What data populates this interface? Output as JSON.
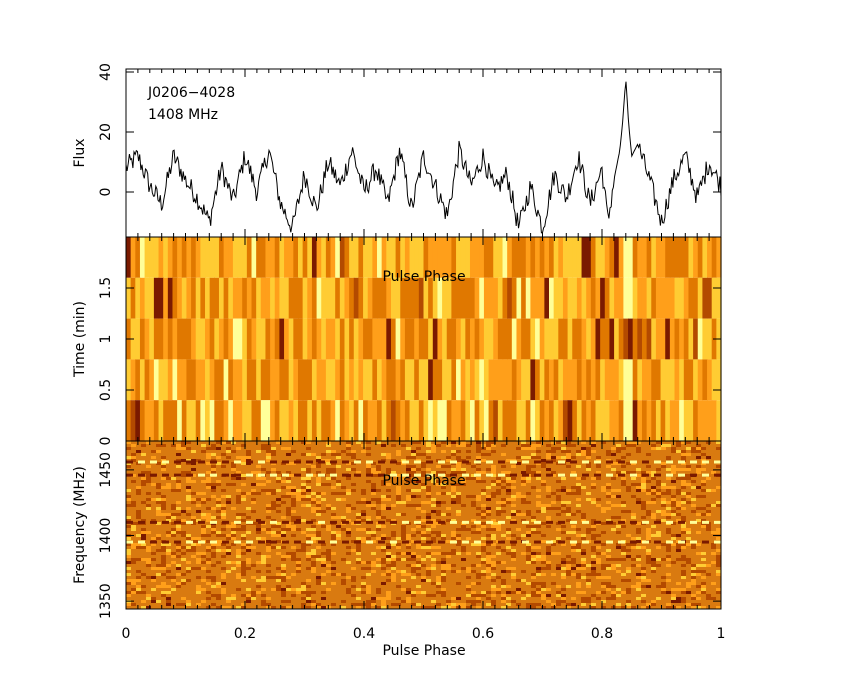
{
  "chart_data": [
    {
      "type": "line",
      "panel": "profile",
      "source": "J0206−4028",
      "frequency_label": "1408 MHz",
      "ylabel": "Flux",
      "xlabel": "",
      "xlim": [
        0,
        1
      ],
      "ylim": [
        -15,
        41
      ],
      "yticks": [
        "0",
        "20",
        "40"
      ],
      "grid": false,
      "series": [
        {
          "x": [
            0.0,
            0.02,
            0.04,
            0.06,
            0.08,
            0.1,
            0.12,
            0.14,
            0.16,
            0.18,
            0.2,
            0.22,
            0.24,
            0.26,
            0.28,
            0.3,
            0.32,
            0.34,
            0.36,
            0.38,
            0.4,
            0.42,
            0.44,
            0.46,
            0.48,
            0.5,
            0.52,
            0.54,
            0.56,
            0.58,
            0.6,
            0.62,
            0.64,
            0.66,
            0.68,
            0.7,
            0.72,
            0.74,
            0.76,
            0.78,
            0.8,
            0.81,
            0.82,
            0.83,
            0.835,
            0.84,
            0.845,
            0.85,
            0.86,
            0.88,
            0.9,
            0.92,
            0.94,
            0.96,
            0.98,
            1.0
          ],
          "values": [
            8,
            12,
            2,
            -4,
            12,
            4,
            -2,
            -10,
            8,
            -3,
            12,
            0,
            14,
            -4,
            -12,
            6,
            -6,
            10,
            2,
            14,
            0,
            8,
            -4,
            14,
            -6,
            12,
            2,
            -8,
            14,
            2,
            12,
            0,
            6,
            -12,
            2,
            -12,
            6,
            -2,
            12,
            -4,
            8,
            -10,
            4,
            14,
            24,
            38,
            22,
            12,
            16,
            4,
            -10,
            4,
            12,
            -2,
            10,
            2
          ]
        }
      ]
    },
    {
      "type": "heatmap",
      "panel": "time-phase",
      "title": "Pulse Phase",
      "ylabel": "Time (min)",
      "xlim": [
        0,
        1
      ],
      "ylim": [
        0,
        2
      ],
      "yticks": [
        "0",
        "0.5",
        "1",
        "1.5"
      ],
      "rows": 5,
      "bins": 128,
      "colormap": [
        "#7a1a00",
        "#b34a00",
        "#e07800",
        "#ff9f1a",
        "#ffcc33",
        "#ffff99"
      ],
      "peak_phase": 0.84
    },
    {
      "type": "heatmap",
      "panel": "frequency-phase",
      "title": "Pulse Phase",
      "xlabel": "Pulse Phase",
      "ylabel": "Frequency (MHz)",
      "xlim": [
        0,
        1
      ],
      "xticks": [
        "0",
        "0.2",
        "0.4",
        "0.6",
        "0.8",
        "1"
      ],
      "ylim": [
        1344,
        1472
      ],
      "yticks": [
        "1350",
        "1400",
        "1450"
      ],
      "interference_channels_mhz": [
        1395,
        1410,
        1446,
        1456
      ],
      "colormap": [
        "#7a1a00",
        "#b34a00",
        "#e07800",
        "#ff9f1a",
        "#ffcc33",
        "#ffff99"
      ]
    }
  ]
}
